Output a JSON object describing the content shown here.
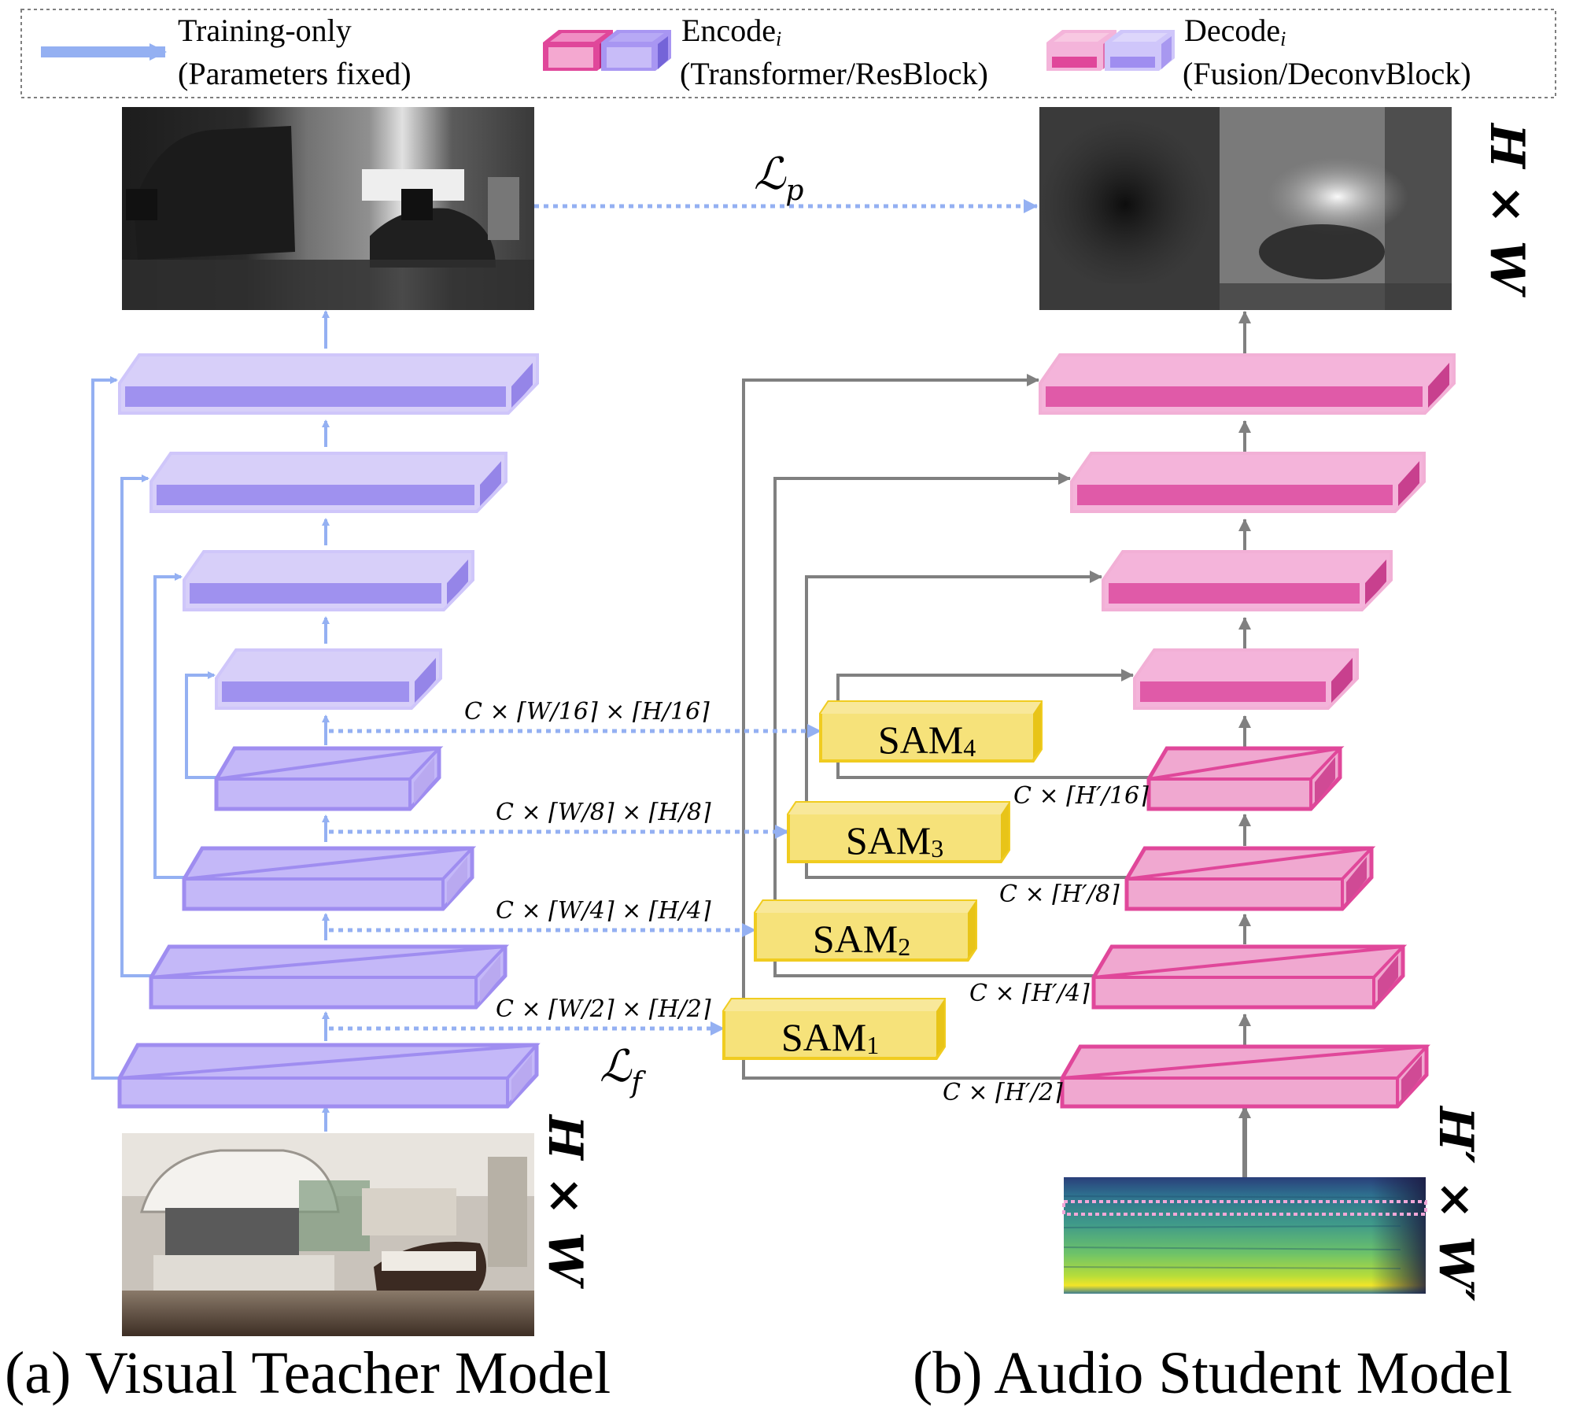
{
  "legend": {
    "training_only": "Training-only",
    "parameters_fixed": "(Parameters fixed)",
    "encode": "Encode",
    "encode_sub": "i",
    "encode_desc": "(Transformer/ResBlock)",
    "decode": "Decode",
    "decode_sub": "i",
    "decode_desc": "(Fusion/DeconvBlock)"
  },
  "losses": {
    "pixel_loss": "ℒ",
    "pixel_loss_sub": "p",
    "feature_loss": "ℒ",
    "feature_loss_sub": "f"
  },
  "dims": {
    "teacher_output": "H × W",
    "teacher_input": "H × W",
    "student_output": "H × W",
    "student_input": "H′ × W′"
  },
  "teacher_features": [
    "C × ⌈W/2⌉ × ⌈H/2⌉",
    "C × ⌈W/4⌉ × ⌈H/4⌉",
    "C × ⌈W/8⌉ × ⌈H/8⌉",
    "C × ⌈W/16⌉ × ⌈H/16⌉"
  ],
  "student_features": [
    "C × ⌈H′/2⌉",
    "C × ⌈H′/4⌉",
    "C × ⌈H′/8⌉",
    "C × ⌈H′/16⌉"
  ],
  "sam_modules": [
    {
      "label": "SAM",
      "sub": "1"
    },
    {
      "label": "SAM",
      "sub": "2"
    },
    {
      "label": "SAM",
      "sub": "3"
    },
    {
      "label": "SAM",
      "sub": "4"
    }
  ],
  "captions": {
    "teacher": "(a) Visual Teacher Model",
    "student": "(b) Audio Student Model"
  },
  "colors": {
    "blue_arrow": "#94b0f2",
    "gray_arrow": "#808080",
    "teacher_enc": "#c4b8f8",
    "teacher_enc_edge": "#9f8df0",
    "teacher_dec": "#9f91ef",
    "student_enc": "#f0a8d0",
    "student_enc_edge": "#e0479a",
    "student_dec": "#e05aa8",
    "sam": "#f6e27a",
    "sam_edge": "#f0cc20"
  }
}
